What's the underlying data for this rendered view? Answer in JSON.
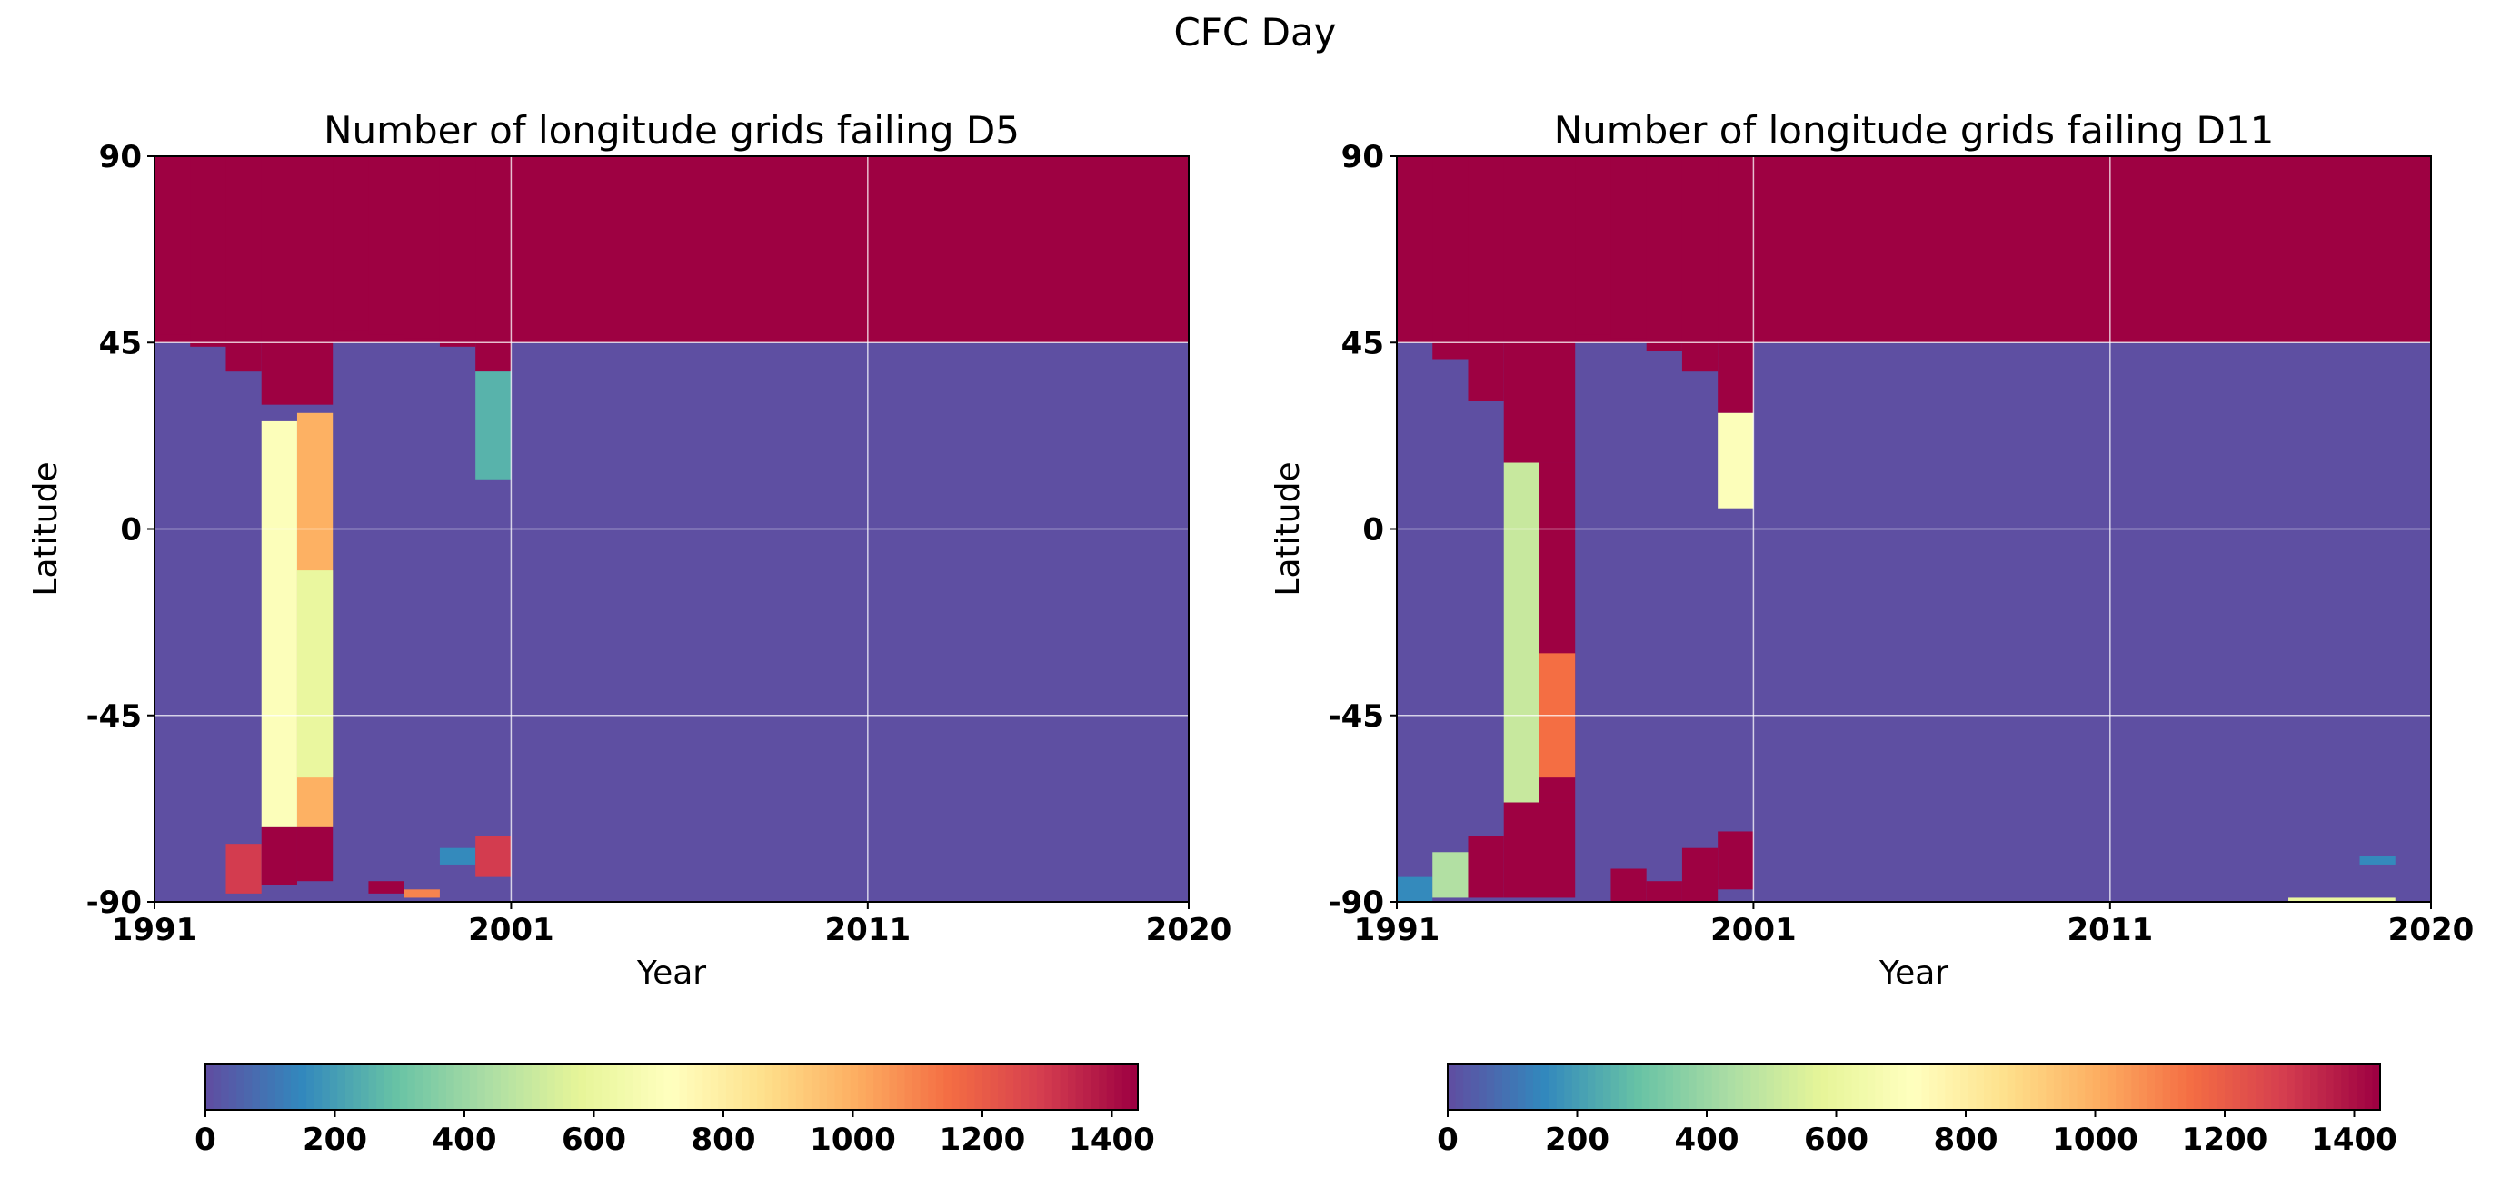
{
  "figure": {
    "title": "CFC Day"
  },
  "colormap": {
    "name": "Spectral_r",
    "stops": [
      "#5e4fa2",
      "#3288bd",
      "#66c2a5",
      "#abdda4",
      "#e6f598",
      "#ffffbf",
      "#fee08b",
      "#fdae61",
      "#f46d43",
      "#d53e4f",
      "#9e0142"
    ],
    "background": "#5e4fa2"
  },
  "chart_data": [
    {
      "type": "heatmap",
      "title": "Number of longitude grids failing D5",
      "xlabel": "Year",
      "ylabel": "Latitude",
      "xlim": [
        1991,
        2020
      ],
      "ylim": [
        -90,
        90
      ],
      "xticks": [
        "1991",
        "2001",
        "2011",
        "2020"
      ],
      "yticks": [
        "90",
        "45",
        "0",
        "-45",
        "-90"
      ],
      "grid": true,
      "colorbar": {
        "min": 0,
        "max": 1440,
        "ticks": [
          "0",
          "200",
          "400",
          "600",
          "800",
          "1000",
          "1200",
          "1400"
        ]
      },
      "cells": [
        {
          "x0": 1991,
          "x1": 2020,
          "y0": 45,
          "y1": 90,
          "value": 1440
        },
        {
          "x0": 1991,
          "x1": 1992,
          "y0": 47,
          "y1": 90,
          "value": 1440
        },
        {
          "x0": 1992,
          "x1": 1993,
          "y0": 44,
          "y1": 90,
          "value": 1440
        },
        {
          "x0": 1993,
          "x1": 1994,
          "y0": 38,
          "y1": 90,
          "value": 1440
        },
        {
          "x0": 1994,
          "x1": 1996,
          "y0": 30,
          "y1": 90,
          "value": 1440
        },
        {
          "x0": 1996,
          "x1": 1997,
          "y0": 48,
          "y1": 90,
          "value": 1440
        },
        {
          "x0": 1997,
          "x1": 1998,
          "y0": 47,
          "y1": 90,
          "value": 1440
        },
        {
          "x0": 1998,
          "x1": 1999,
          "y0": 46,
          "y1": 90,
          "value": 1440
        },
        {
          "x0": 1999,
          "x1": 2000,
          "y0": 44,
          "y1": 90,
          "value": 1440
        },
        {
          "x0": 2000,
          "x1": 2001,
          "y0": 38,
          "y1": 90,
          "value": 1440
        },
        {
          "x0": 1994,
          "x1": 1995,
          "y0": -72,
          "y1": 26,
          "value": 700
        },
        {
          "x0": 1995,
          "x1": 1996,
          "y0": -72,
          "y1": 28,
          "value": 1000
        },
        {
          "x0": 1995,
          "x1": 1996,
          "y0": -60,
          "y1": -10,
          "value": 600
        },
        {
          "x0": 2000,
          "x1": 2001,
          "y0": 12,
          "y1": 38,
          "value": 250
        },
        {
          "x0": 1993,
          "x1": 1994,
          "y0": -88,
          "y1": -76,
          "value": 1300
        },
        {
          "x0": 1994,
          "x1": 1995,
          "y0": -86,
          "y1": -72,
          "value": 1440
        },
        {
          "x0": 1995,
          "x1": 1996,
          "y0": -85,
          "y1": -72,
          "value": 1440
        },
        {
          "x0": 1997,
          "x1": 1998,
          "y0": -88,
          "y1": -85,
          "value": 1440
        },
        {
          "x0": 1998,
          "x1": 1999,
          "y0": -89,
          "y1": -87,
          "value": 1100
        },
        {
          "x0": 1999,
          "x1": 2000,
          "y0": -81,
          "y1": -77,
          "value": 150
        },
        {
          "x0": 2000,
          "x1": 2001,
          "y0": -84,
          "y1": -74,
          "value": 1300
        }
      ]
    },
    {
      "type": "heatmap",
      "title": "Number of longitude grids failing D11",
      "xlabel": "Year",
      "ylabel": "Latitude",
      "xlim": [
        1991,
        2020
      ],
      "ylim": [
        -90,
        90
      ],
      "xticks": [
        "1991",
        "2001",
        "2011",
        "2020"
      ],
      "yticks": [
        "90",
        "45",
        "0",
        "-45",
        "-90"
      ],
      "grid": true,
      "colorbar": {
        "min": 0,
        "max": 1440,
        "ticks": [
          "0",
          "200",
          "400",
          "600",
          "800",
          "1000",
          "1200",
          "1400"
        ]
      },
      "cells": [
        {
          "x0": 1991,
          "x1": 2020,
          "y0": 45,
          "y1": 90,
          "value": 1440
        },
        {
          "x0": 1992,
          "x1": 1993,
          "y0": 41,
          "y1": 90,
          "value": 1440
        },
        {
          "x0": 1993,
          "x1": 1994,
          "y0": 31,
          "y1": 90,
          "value": 1440
        },
        {
          "x0": 1994,
          "x1": 1996,
          "y0": 16,
          "y1": 90,
          "value": 1440
        },
        {
          "x0": 1996,
          "x1": 1997,
          "y0": 47,
          "y1": 90,
          "value": 1440
        },
        {
          "x0": 1997,
          "x1": 1998,
          "y0": 46,
          "y1": 90,
          "value": 1440
        },
        {
          "x0": 1998,
          "x1": 1999,
          "y0": 43,
          "y1": 90,
          "value": 1440
        },
        {
          "x0": 1999,
          "x1": 2000,
          "y0": 38,
          "y1": 90,
          "value": 1440
        },
        {
          "x0": 2000,
          "x1": 2001,
          "y0": 28,
          "y1": 90,
          "value": 1440
        },
        {
          "x0": 1994,
          "x1": 1995,
          "y0": -66,
          "y1": 16,
          "value": 500
        },
        {
          "x0": 1995,
          "x1": 1996,
          "y0": -66,
          "y1": 16,
          "value": 1440
        },
        {
          "x0": 1995,
          "x1": 1996,
          "y0": -60,
          "y1": -30,
          "value": 1150
        },
        {
          "x0": 2000,
          "x1": 2001,
          "y0": 5,
          "y1": 28,
          "value": 700
        },
        {
          "x0": 1991,
          "x1": 1992,
          "y0": -90,
          "y1": -84,
          "value": 150
        },
        {
          "x0": 1992,
          "x1": 1993,
          "y0": -89,
          "y1": -78,
          "value": 450
        },
        {
          "x0": 1993,
          "x1": 1994,
          "y0": -89,
          "y1": -74,
          "value": 1440
        },
        {
          "x0": 1994,
          "x1": 1996,
          "y0": -89,
          "y1": -66,
          "value": 1440
        },
        {
          "x0": 1997,
          "x1": 1998,
          "y0": -90,
          "y1": -82,
          "value": 1440
        },
        {
          "x0": 1998,
          "x1": 1999,
          "y0": -90,
          "y1": -85,
          "value": 1440
        },
        {
          "x0": 1999,
          "x1": 2000,
          "y0": -90,
          "y1": -77,
          "value": 1440
        },
        {
          "x0": 2000,
          "x1": 2001,
          "y0": -87,
          "y1": -73,
          "value": 1440
        },
        {
          "x0": 2016,
          "x1": 2019,
          "y0": -90,
          "y1": -89,
          "value": 600
        },
        {
          "x0": 2018,
          "x1": 2019,
          "y0": -81,
          "y1": -79,
          "value": 150
        }
      ]
    }
  ]
}
